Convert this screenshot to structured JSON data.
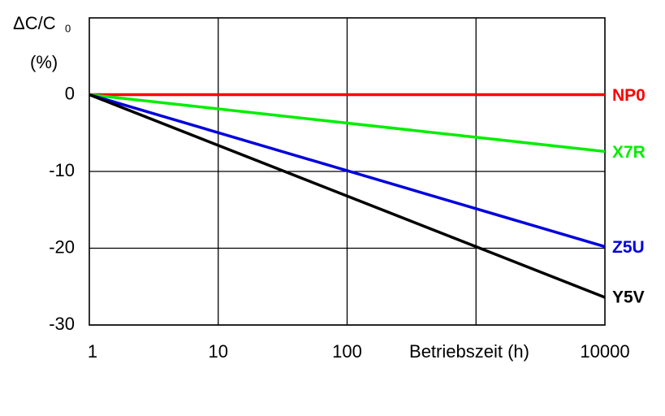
{
  "chart_data": {
    "type": "line",
    "xscale": "log",
    "ylabel": {
      "main": "ΔC/C",
      "sub": "0",
      "unit": "(%)"
    },
    "xlabel": "Betriebszeit (h)",
    "x": [
      1,
      10000
    ],
    "series": [
      {
        "name": "NP0",
        "color": "#ff0000",
        "values": [
          0,
          0
        ]
      },
      {
        "name": "X7R",
        "color": "#00ee00",
        "values": [
          0,
          -7.4
        ]
      },
      {
        "name": "Z5U",
        "color": "#0000dd",
        "values": [
          0,
          -19.8
        ]
      },
      {
        "name": "Y5V",
        "color": "#000000",
        "values": [
          0,
          -26.4
        ]
      }
    ],
    "xlim": [
      1,
      10000
    ],
    "xticks": [
      1,
      10,
      100,
      10000
    ],
    "xgrid": [
      10,
      100,
      1000
    ],
    "ylim": [
      -30,
      10
    ],
    "yticks": [
      -30,
      -20,
      -10,
      0
    ],
    "grid": true
  }
}
